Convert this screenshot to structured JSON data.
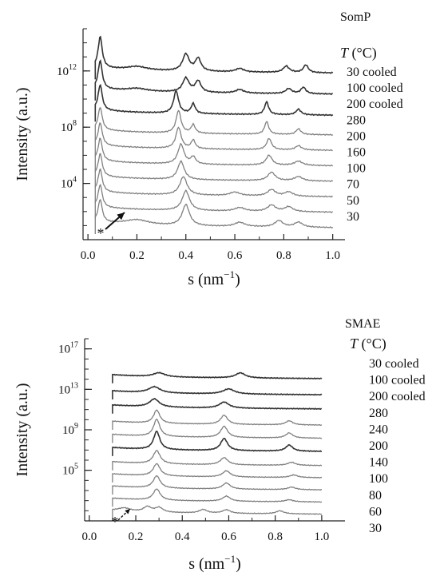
{
  "chart_data": [
    {
      "type": "line",
      "title": "SomP",
      "legend_header": "T (°C)",
      "legend_header_italic": "T",
      "legend_header_unit": " (°C)",
      "xlabel": "s (nm⁻¹)",
      "xlabel_base": "s (nm",
      "xlabel_sup": "−1",
      "xlabel_end": ")",
      "ylabel": "Intensity (a.u.)",
      "xlim": [
        -0.02,
        1.05
      ],
      "x_ticks": [
        0.0,
        0.2,
        0.4,
        0.6,
        0.8,
        1.0
      ],
      "x_tick_labels": [
        "0.0",
        "0.2",
        "0.4",
        "0.6",
        "0.8",
        "1.0"
      ],
      "y_scale": "log",
      "ylim_log10": [
        0,
        15
      ],
      "y_ticks": [
        {
          "base": "10",
          "exp": "4",
          "log10": 4
        },
        {
          "base": "10",
          "exp": "8",
          "log10": 8
        },
        {
          "base": "10",
          "exp": "12",
          "log10": 12
        }
      ],
      "annotation": "*",
      "series": [
        {
          "name": "30",
          "color": "#808080",
          "baseline_log10": 1.0,
          "peaks": [
            [
              0.05,
              1.6,
              0.01
            ],
            [
              0.2,
              0.35,
              0.06
            ],
            [
              0.4,
              1.5,
              0.018
            ],
            [
              0.62,
              0.3,
              0.025
            ],
            [
              0.78,
              0.45,
              0.02
            ],
            [
              0.86,
              0.35,
              0.02
            ]
          ]
        },
        {
          "name": "50",
          "color": "#808080",
          "baseline_log10": 2.1,
          "peaks": [
            [
              0.05,
              1.6,
              0.01
            ],
            [
              0.4,
              1.4,
              0.018
            ],
            [
              0.62,
              0.25,
              0.025
            ],
            [
              0.75,
              0.45,
              0.02
            ],
            [
              0.82,
              0.35,
              0.02
            ]
          ]
        },
        {
          "name": "70",
          "color": "#808080",
          "baseline_log10": 3.2,
          "peaks": [
            [
              0.05,
              1.6,
              0.01
            ],
            [
              0.39,
              1.3,
              0.018
            ],
            [
              0.6,
              0.25,
              0.025
            ],
            [
              0.75,
              0.45,
              0.02
            ],
            [
              0.82,
              0.3,
              0.02
            ]
          ]
        },
        {
          "name": "100",
          "color": "#808080",
          "baseline_log10": 4.3,
          "peaks": [
            [
              0.05,
              1.6,
              0.01
            ],
            [
              0.38,
              1.3,
              0.016
            ],
            [
              0.75,
              0.6,
              0.018
            ],
            [
              0.86,
              0.3,
              0.02
            ]
          ]
        },
        {
          "name": "160",
          "color": "#808080",
          "baseline_log10": 5.4,
          "peaks": [
            [
              0.05,
              1.6,
              0.01
            ],
            [
              0.38,
              1.4,
              0.015
            ],
            [
              0.43,
              0.5,
              0.012
            ],
            [
              0.74,
              0.7,
              0.015
            ],
            [
              0.86,
              0.3,
              0.02
            ]
          ]
        },
        {
          "name": "200",
          "color": "#808080",
          "baseline_log10": 6.5,
          "peaks": [
            [
              0.05,
              1.6,
              0.01
            ],
            [
              0.37,
              1.5,
              0.013
            ],
            [
              0.43,
              0.6,
              0.01
            ],
            [
              0.74,
              0.8,
              0.012
            ],
            [
              0.86,
              0.3,
              0.015
            ]
          ]
        },
        {
          "name": "280",
          "color": "#808080",
          "baseline_log10": 7.6,
          "peaks": [
            [
              0.05,
              1.6,
              0.01
            ],
            [
              0.37,
              1.6,
              0.012
            ],
            [
              0.43,
              0.6,
              0.01
            ],
            [
              0.73,
              0.9,
              0.01
            ],
            [
              0.86,
              0.4,
              0.012
            ]
          ]
        },
        {
          "name": "200 cooled",
          "color": "#333333",
          "baseline_log10": 9.0,
          "peaks": [
            [
              0.05,
              1.8,
              0.01
            ],
            [
              0.36,
              1.6,
              0.012
            ],
            [
              0.43,
              0.7,
              0.01
            ],
            [
              0.73,
              0.9,
              0.01
            ],
            [
              0.86,
              0.4,
              0.012
            ]
          ]
        },
        {
          "name": "100 cooled",
          "color": "#333333",
          "baseline_log10": 10.5,
          "peaks": [
            [
              0.05,
              2.0,
              0.01
            ],
            [
              0.2,
              0.2,
              0.05
            ],
            [
              0.4,
              1.0,
              0.016
            ],
            [
              0.45,
              0.8,
              0.014
            ],
            [
              0.62,
              0.25,
              0.02
            ],
            [
              0.82,
              0.35,
              0.015
            ],
            [
              0.88,
              0.45,
              0.012
            ]
          ]
        },
        {
          "name": "30 cooled",
          "color": "#333333",
          "baseline_log10": 12.0,
          "peaks": [
            [
              0.05,
              2.2,
              0.01
            ],
            [
              0.2,
              0.25,
              0.05
            ],
            [
              0.4,
              1.2,
              0.016
            ],
            [
              0.45,
              0.9,
              0.014
            ],
            [
              0.62,
              0.25,
              0.02
            ],
            [
              0.81,
              0.45,
              0.015
            ],
            [
              0.89,
              0.55,
              0.012
            ]
          ]
        }
      ]
    },
    {
      "type": "line",
      "title": "SMAE",
      "legend_header": "T (°C)",
      "legend_header_italic": "T",
      "legend_header_unit": " (°C)",
      "xlabel": "s (nm⁻¹)",
      "xlabel_base": "s (nm",
      "xlabel_sup": "−1",
      "xlabel_end": ")",
      "ylabel": "Intensity (a.u.)",
      "xlim": [
        -0.02,
        1.1
      ],
      "x_ticks": [
        0.0,
        0.2,
        0.4,
        0.6,
        0.8,
        1.0
      ],
      "x_tick_labels": [
        "0.0",
        "0.2",
        "0.4",
        "0.6",
        "0.8",
        "1.0"
      ],
      "y_scale": "log",
      "ylim_log10": [
        0,
        18
      ],
      "y_ticks": [
        {
          "base": "10",
          "exp": "5",
          "log10": 5
        },
        {
          "base": "10",
          "exp": "9",
          "log10": 9
        },
        {
          "base": "10",
          "exp": "13",
          "log10": 13
        },
        {
          "base": "10",
          "exp": "17",
          "log10": 17
        }
      ],
      "annotation": "*",
      "series": [
        {
          "name": "30",
          "color": "#808080",
          "baseline_log10": 0.8,
          "peaks": [
            [
              0.15,
              0.3,
              0.03
            ],
            [
              0.25,
              0.5,
              0.02
            ],
            [
              0.3,
              0.45,
              0.02
            ],
            [
              0.49,
              0.35,
              0.02
            ],
            [
              0.59,
              0.35,
              0.02
            ],
            [
              0.82,
              0.3,
              0.02
            ]
          ]
        },
        {
          "name": "60",
          "color": "#808080",
          "baseline_log10": 2.0,
          "peaks": [
            [
              0.29,
              1.1,
              0.018
            ],
            [
              0.59,
              0.5,
              0.02
            ],
            [
              0.86,
              0.2,
              0.02
            ]
          ]
        },
        {
          "name": "80",
          "color": "#808080",
          "baseline_log10": 3.2,
          "peaks": [
            [
              0.29,
              1.2,
              0.018
            ],
            [
              0.59,
              0.6,
              0.02
            ],
            [
              0.87,
              0.25,
              0.02
            ]
          ]
        },
        {
          "name": "100",
          "color": "#808080",
          "baseline_log10": 4.4,
          "peaks": [
            [
              0.29,
              1.2,
              0.018
            ],
            [
              0.59,
              0.6,
              0.02
            ],
            [
              0.88,
              0.25,
              0.02
            ]
          ]
        },
        {
          "name": "140",
          "color": "#808080",
          "baseline_log10": 5.6,
          "peaks": [
            [
              0.29,
              1.3,
              0.018
            ],
            [
              0.58,
              0.7,
              0.02
            ],
            [
              0.87,
              0.3,
              0.02
            ]
          ]
        },
        {
          "name": "200",
          "color": "#333333",
          "baseline_log10": 7.0,
          "peaks": [
            [
              0.29,
              1.8,
              0.016
            ],
            [
              0.58,
              1.2,
              0.018
            ],
            [
              0.86,
              0.6,
              0.018
            ]
          ]
        },
        {
          "name": "240",
          "color": "#808080",
          "baseline_log10": 8.3,
          "peaks": [
            [
              0.29,
              1.7,
              0.016
            ],
            [
              0.58,
              1.1,
              0.018
            ],
            [
              0.86,
              0.5,
              0.018
            ]
          ]
        },
        {
          "name": "280",
          "color": "#808080",
          "baseline_log10": 9.6,
          "peaks": [
            [
              0.29,
              1.3,
              0.016
            ],
            [
              0.58,
              0.9,
              0.018
            ],
            [
              0.86,
              0.4,
              0.018
            ]
          ]
        },
        {
          "name": "200 cooled",
          "color": "#333333",
          "baseline_log10": 11.2,
          "peaks": [
            [
              0.28,
              0.8,
              0.025
            ],
            [
              0.58,
              0.6,
              0.025
            ]
          ]
        },
        {
          "name": "100 cooled",
          "color": "#333333",
          "baseline_log10": 12.6,
          "peaks": [
            [
              0.28,
              0.6,
              0.03
            ],
            [
              0.6,
              0.5,
              0.03
            ]
          ]
        },
        {
          "name": "30 cooled",
          "color": "#333333",
          "baseline_log10": 14.2,
          "peaks": [
            [
              0.3,
              0.4,
              0.03
            ],
            [
              0.65,
              0.5,
              0.025
            ]
          ]
        }
      ]
    }
  ]
}
